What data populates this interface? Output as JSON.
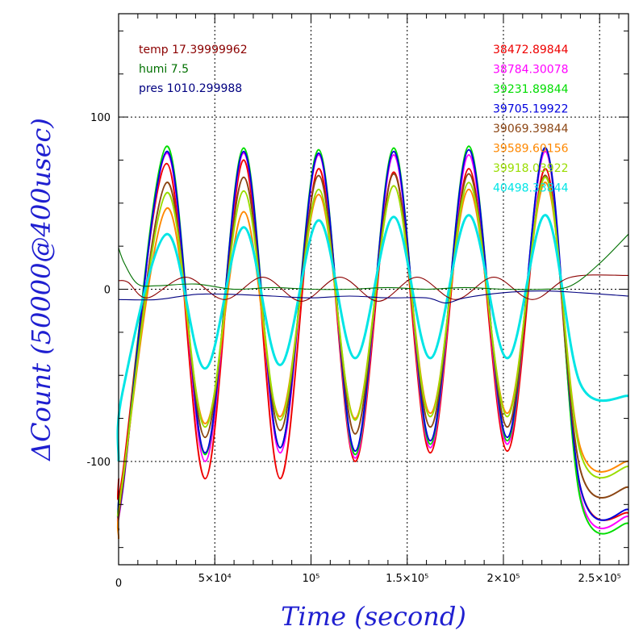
{
  "chart_data": {
    "type": "line",
    "xlabel": "Time (second)",
    "ylabel": "ΔCount (50000@400usec)",
    "xlim": [
      0,
      265000
    ],
    "ylim": [
      -160,
      160
    ],
    "grid": true,
    "x_ticks": [
      {
        "value": 0,
        "label": "0"
      },
      {
        "value": 50000,
        "label": "5×10⁴"
      },
      {
        "value": 100000,
        "label": "10⁵"
      },
      {
        "value": 150000,
        "label": "1.5×10⁵"
      },
      {
        "value": 200000,
        "label": "2×10⁵"
      },
      {
        "value": 250000,
        "label": "2.5×10⁵"
      }
    ],
    "y_ticks": [
      {
        "value": 100,
        "label": "100"
      },
      {
        "value": 0,
        "label": "0"
      },
      {
        "value": -100,
        "label": "-100"
      }
    ],
    "env_legend": [
      {
        "label": "temp 17.39999962",
        "color": "#8b0000"
      },
      {
        "label": "humi 7.5",
        "color": "#007000"
      },
      {
        "label": "pres 1010.299988",
        "color": "#000080"
      }
    ],
    "series": [
      {
        "name": "38472.89844",
        "color": "#ee0000",
        "x": [
          0,
          2000,
          25000,
          45000,
          65000,
          84000,
          104000,
          123000,
          143000,
          162000,
          182000,
          202000,
          222000,
          240000,
          265000
        ],
        "y": [
          -110,
          -108,
          73,
          -110,
          75,
          -110,
          70,
          -100,
          68,
          -95,
          70,
          -94,
          70,
          -115,
          -130
        ]
      },
      {
        "name": "38784.30078",
        "color": "#ff00ff",
        "x": [
          0,
          2000,
          25000,
          45000,
          65000,
          84000,
          104000,
          123000,
          143000,
          162000,
          182000,
          202000,
          222000,
          240000,
          265000
        ],
        "y": [
          -125,
          -118,
          79,
          -100,
          79,
          -95,
          78,
          -98,
          78,
          -92,
          78,
          -90,
          80,
          -120,
          -132
        ]
      },
      {
        "name": "39231.89844",
        "color": "#00dd00",
        "x": [
          0,
          2000,
          25000,
          45000,
          65000,
          84000,
          104000,
          123000,
          143000,
          162000,
          182000,
          202000,
          222000,
          240000,
          265000
        ],
        "y": [
          -122,
          -116,
          83,
          -96,
          82,
          -92,
          81,
          -96,
          82,
          -90,
          83,
          -88,
          82,
          -122,
          -136
        ]
      },
      {
        "name": "39705.19922",
        "color": "#0000dd",
        "x": [
          0,
          2000,
          25000,
          45000,
          65000,
          84000,
          104000,
          123000,
          143000,
          162000,
          182000,
          202000,
          222000,
          240000,
          265000
        ],
        "y": [
          -122,
          -117,
          80,
          -95,
          80,
          -92,
          79,
          -94,
          80,
          -88,
          81,
          -86,
          82,
          -115,
          -128
        ]
      },
      {
        "name": "39069.39844",
        "color": "#8b4513",
        "x": [
          0,
          2000,
          25000,
          45000,
          65000,
          84000,
          104000,
          123000,
          143000,
          162000,
          182000,
          202000,
          222000,
          240000,
          265000
        ],
        "y": [
          -140,
          -115,
          62,
          -86,
          65,
          -82,
          66,
          -84,
          67,
          -80,
          67,
          -80,
          66,
          -105,
          -115
        ]
      },
      {
        "name": "39589.60156",
        "color": "#ff8800",
        "x": [
          0,
          2000,
          25000,
          45000,
          65000,
          84000,
          104000,
          123000,
          143000,
          162000,
          182000,
          202000,
          222000,
          240000,
          265000
        ],
        "y": [
          -145,
          -112,
          47,
          -78,
          45,
          -74,
          55,
          -75,
          60,
          -72,
          58,
          -72,
          62,
          -92,
          -100
        ]
      },
      {
        "name": "39918.03922",
        "color": "#99dd00",
        "x": [
          0,
          2000,
          25000,
          45000,
          65000,
          84000,
          104000,
          123000,
          143000,
          162000,
          182000,
          202000,
          222000,
          240000,
          265000
        ],
        "y": [
          -130,
          -112,
          56,
          -80,
          57,
          -76,
          58,
          -76,
          60,
          -74,
          62,
          -74,
          65,
          -95,
          -103
        ]
      },
      {
        "name": "40498.33844",
        "color": "#00e5e5",
        "x": [
          0,
          2000,
          25000,
          45000,
          65000,
          84000,
          104000,
          123000,
          143000,
          162000,
          182000,
          202000,
          222000,
          240000,
          265000
        ],
        "y": [
          -100,
          -60,
          32,
          -46,
          36,
          -44,
          40,
          -40,
          42,
          -40,
          43,
          -40,
          43,
          -55,
          -62
        ]
      },
      {
        "name": "",
        "color": "#8b0000",
        "x": [
          0,
          5000,
          15000,
          35000,
          55000,
          75000,
          95000,
          115000,
          135000,
          155000,
          175000,
          195000,
          215000,
          235000,
          265000
        ],
        "y": [
          5,
          4,
          -5,
          7,
          -6,
          7,
          -7,
          7,
          -7,
          7,
          -6,
          7,
          -6,
          7,
          8
        ]
      },
      {
        "name": "",
        "color": "#007000",
        "x": [
          0,
          3000,
          10000,
          20000,
          40000,
          60000,
          80000,
          100000,
          120000,
          140000,
          160000,
          180000,
          200000,
          220000,
          235000,
          250000,
          265000
        ],
        "y": [
          24,
          15,
          3,
          2,
          3,
          0,
          1,
          0,
          0,
          1,
          0,
          1,
          0,
          0,
          2,
          15,
          32
        ]
      },
      {
        "name": "",
        "color": "#000080",
        "x": [
          0,
          20000,
          40000,
          60000,
          80000,
          100000,
          120000,
          140000,
          160000,
          170000,
          180000,
          200000,
          220000,
          240000,
          265000
        ],
        "y": [
          -6,
          -6,
          -3,
          -3,
          -4,
          -5,
          -4,
          -5,
          -5,
          -8,
          -5,
          -2,
          -1,
          -2,
          -4
        ]
      }
    ]
  }
}
